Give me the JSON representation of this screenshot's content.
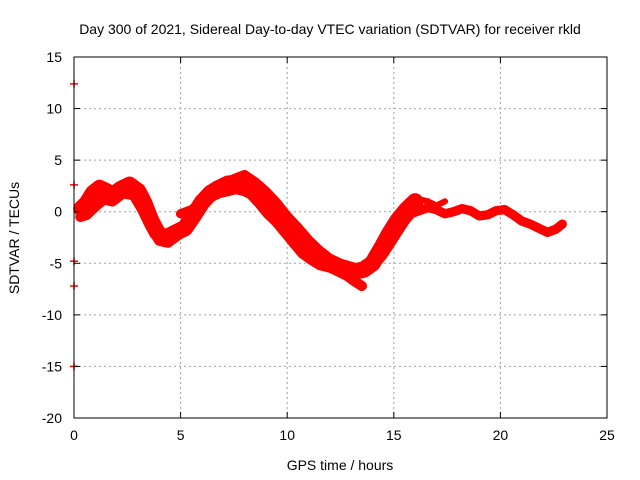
{
  "chart_data": {
    "type": "scatter",
    "title": "Day 300 of 2021, Sidereal Day-to-day VTEC variation (SDTVAR) for receiver rkld",
    "xlabel": "GPS time / hours",
    "ylabel": "SDTVAR / TECUs",
    "xlim": [
      0,
      25
    ],
    "ylim": [
      -20,
      15
    ],
    "xticks": [
      0,
      5,
      10,
      15,
      20,
      25
    ],
    "yticks": [
      15,
      10,
      5,
      0,
      -5,
      -10,
      -15,
      -20
    ],
    "grid": true,
    "colors": {
      "series": "#ff0000",
      "grid": "#a0a0a0",
      "axis": "#000000"
    },
    "series": [
      {
        "name": "SDTVAR",
        "bands": [
          {
            "x": [
              0.35,
              0.6,
              0.9,
              1.2,
              1.5,
              1.8,
              2.2,
              2.6,
              3.0,
              3.3,
              3.6,
              3.9,
              4.2,
              4.5,
              4.8,
              5.2,
              5.6,
              6.0,
              6.4,
              6.8,
              7.2,
              7.6,
              8.0,
              8.4,
              8.8,
              9.2,
              9.6,
              10.0,
              10.4,
              10.8,
              11.2,
              11.6,
              12.0,
              12.4,
              12.8,
              13.2,
              13.6,
              14.0,
              14.4,
              14.8,
              15.2,
              15.6,
              16.0
            ],
            "y": [
              0.3,
              0.8,
              1.8,
              2.3,
              2.0,
              1.6,
              2.2,
              2.6,
              2.0,
              0.8,
              -0.8,
              -2.0,
              -2.6,
              -2.3,
              -2.0,
              -1.6,
              -0.4,
              0.9,
              1.8,
              2.3,
              2.7,
              2.8,
              2.4,
              1.9,
              1.0,
              0.0,
              -0.8,
              -1.8,
              -2.8,
              -3.8,
              -4.4,
              -4.9,
              -5.1,
              -5.3,
              -5.6,
              -5.8,
              -5.6,
              -5.0,
              -3.6,
              -2.1,
              -0.8,
              0.2,
              1.0
            ],
            "width": 1.6
          },
          {
            "x": [
              0.3,
              0.6,
              1.0,
              1.4,
              1.8,
              2.3,
              2.8,
              3.2,
              3.6,
              4.0,
              4.4,
              4.8,
              5.2,
              5.6,
              6.0,
              6.4,
              6.8,
              7.2,
              7.6,
              8.0,
              8.4,
              8.8,
              9.2,
              9.6,
              10.0,
              10.4,
              10.8,
              11.2,
              11.6,
              12.0,
              12.4,
              12.8,
              13.2,
              13.5
            ],
            "y": [
              -0.5,
              -0.3,
              0.5,
              1.2,
              1.0,
              1.8,
              1.6,
              0.2,
              -1.5,
              -2.8,
              -3.0,
              -2.4,
              -1.8,
              -0.6,
              0.6,
              1.4,
              1.8,
              2.0,
              2.2,
              2.0,
              1.6,
              0.8,
              -0.2,
              -1.2,
              -2.2,
              -3.2,
              -4.0,
              -4.6,
              -5.0,
              -5.4,
              -5.8,
              -6.2,
              -6.8,
              -7.2
            ],
            "width": 1.0
          },
          {
            "x": [
              5.0,
              5.5,
              6.0,
              6.5,
              7.0,
              7.5,
              8.0,
              8.5,
              9.0,
              9.5,
              10.0,
              10.5,
              11.0,
              11.5,
              12.0,
              12.5,
              13.0,
              13.5,
              14.0,
              14.5,
              15.0,
              15.5,
              16.0
            ],
            "y": [
              -0.2,
              0.2,
              0.8,
              1.5,
              2.6,
              3.2,
              3.6,
              2.9,
              2.0,
              0.9,
              -0.4,
              -1.5,
              -2.7,
              -3.7,
              -4.5,
              -5.0,
              -5.3,
              -5.6,
              -5.4,
              -4.2,
              -2.6,
              -1.0,
              0.3
            ],
            "width": 0.9
          },
          {
            "x": [
              15.8,
              16.2,
              16.6,
              17.0,
              17.4,
              17.8,
              18.2,
              18.6,
              19.0,
              19.4,
              19.8,
              20.2,
              20.6,
              21.0,
              21.4,
              21.8,
              22.2,
              22.6,
              22.9
            ],
            "y": [
              -0.2,
              0.1,
              0.4,
              0.2,
              -0.2,
              0.0,
              0.3,
              0.1,
              -0.4,
              -0.3,
              0.1,
              0.2,
              -0.3,
              -0.9,
              -1.2,
              -1.6,
              -2.0,
              -1.7,
              -1.2
            ],
            "width": 0.9
          },
          {
            "x": [
              16.2,
              16.6,
              17.0,
              17.4
            ],
            "y": [
              1.2,
              1.0,
              0.6,
              1.0
            ],
            "width": 0.6
          }
        ],
        "outliers": [
          {
            "x": 0.0,
            "y": 12.4
          },
          {
            "x": 0.0,
            "y": 2.6
          },
          {
            "x": 0.0,
            "y": -4.8
          },
          {
            "x": 0.0,
            "y": -7.2
          },
          {
            "x": 0.0,
            "y": -15.0
          }
        ]
      }
    ]
  }
}
